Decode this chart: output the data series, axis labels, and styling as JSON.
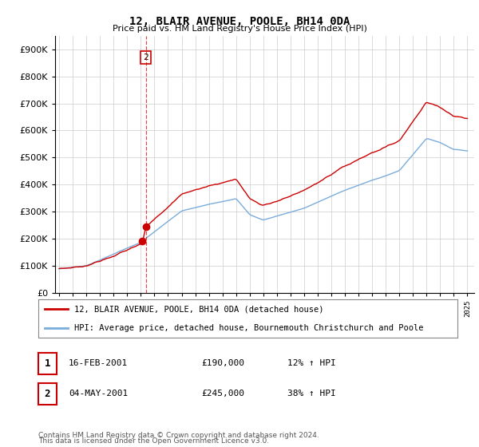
{
  "title": "12, BLAIR AVENUE, POOLE, BH14 0DA",
  "subtitle": "Price paid vs. HM Land Registry's House Price Index (HPI)",
  "yticks": [
    0,
    100000,
    200000,
    300000,
    400000,
    500000,
    600000,
    700000,
    800000,
    900000
  ],
  "legend_line1": "12, BLAIR AVENUE, POOLE, BH14 0DA (detached house)",
  "legend_line2": "HPI: Average price, detached house, Bournemouth Christchurch and Poole",
  "transaction1_label": "1",
  "transaction1_date": "16-FEB-2001",
  "transaction1_price": "£190,000",
  "transaction1_hpi": "12% ↑ HPI",
  "transaction2_label": "2",
  "transaction2_date": "04-MAY-2001",
  "transaction2_price": "£245,000",
  "transaction2_hpi": "38% ↑ HPI",
  "footnote_line1": "Contains HM Land Registry data © Crown copyright and database right 2024.",
  "footnote_line2": "This data is licensed under the Open Government Licence v3.0.",
  "red_line_color": "#cc0000",
  "blue_line_color": "#7aacdc",
  "grid_color": "#cccccc",
  "transaction1_marker_year": 2001.12,
  "transaction2_marker_year": 2001.37,
  "transaction1_marker_price": 190000,
  "transaction2_marker_price": 245000,
  "vline_year": 2001.37
}
